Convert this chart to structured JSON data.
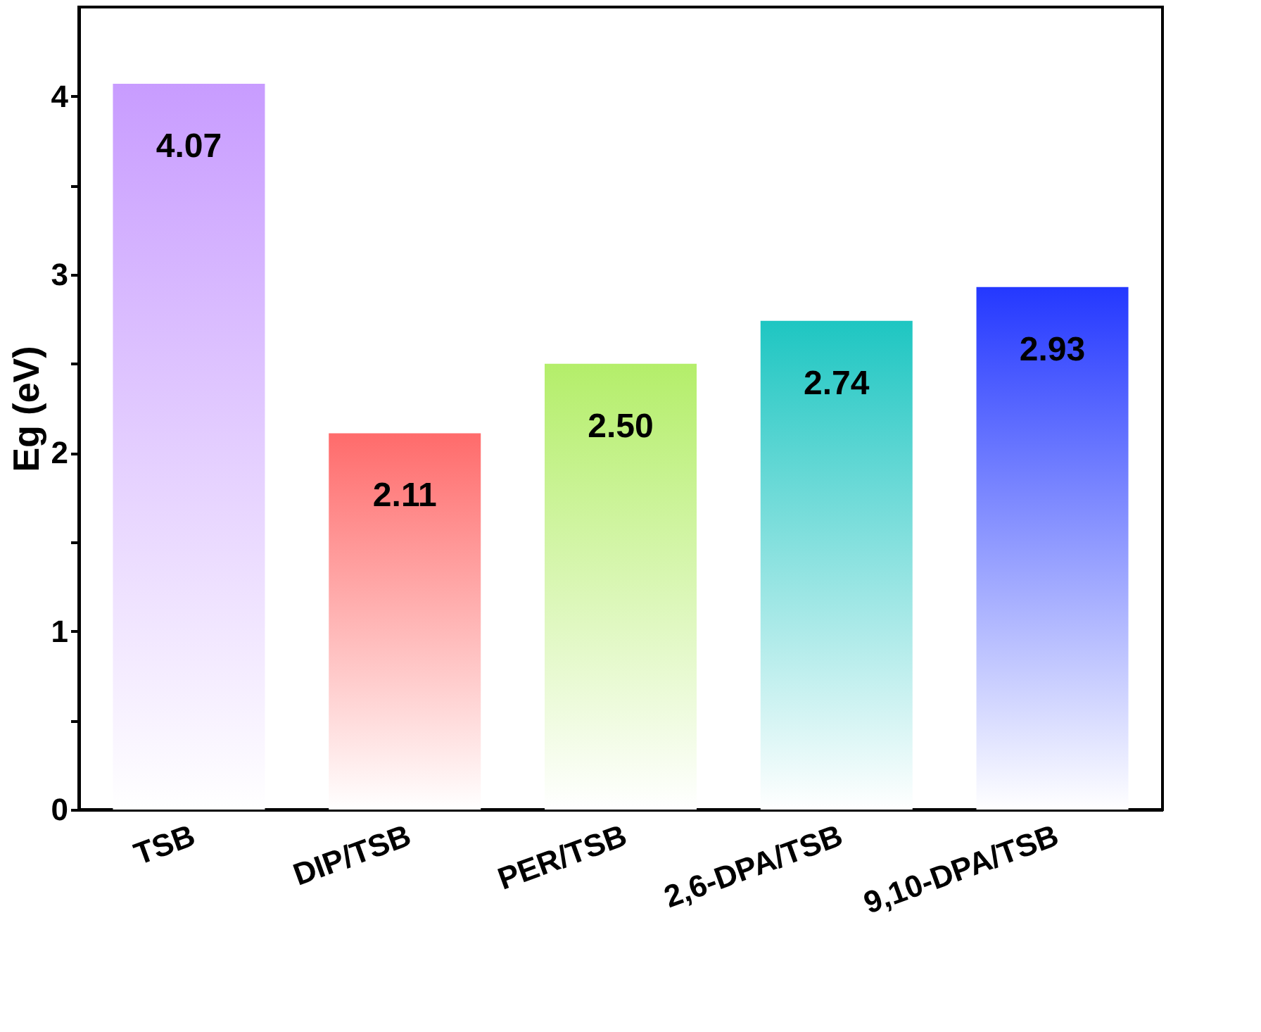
{
  "chart_data": {
    "type": "bar",
    "ylabel": "Eg (eV)",
    "categories": [
      "TSB",
      "DIP/TSB",
      "PER/TSB",
      "2,6-DPA/TSB",
      "9,10-DPA/TSB"
    ],
    "values": [
      4.07,
      2.11,
      2.5,
      2.74,
      2.93
    ],
    "colors": [
      "#c89cff",
      "#ff6b6b",
      "#b4ee6a",
      "#1ec6c2",
      "#2438ff"
    ],
    "ylim": [
      0,
      4.5
    ],
    "yticks": [
      0,
      {
        "value": 0.5,
        "label": null
      },
      1,
      {
        "value": 1.5,
        "label": null
      },
      2,
      {
        "value": 2.5,
        "label": null
      },
      3,
      {
        "value": 3.5,
        "label": null
      },
      4
    ],
    "value_labels": [
      "4.07",
      "2.11",
      "2.50",
      "2.74",
      "2.93"
    ],
    "grid": false
  }
}
